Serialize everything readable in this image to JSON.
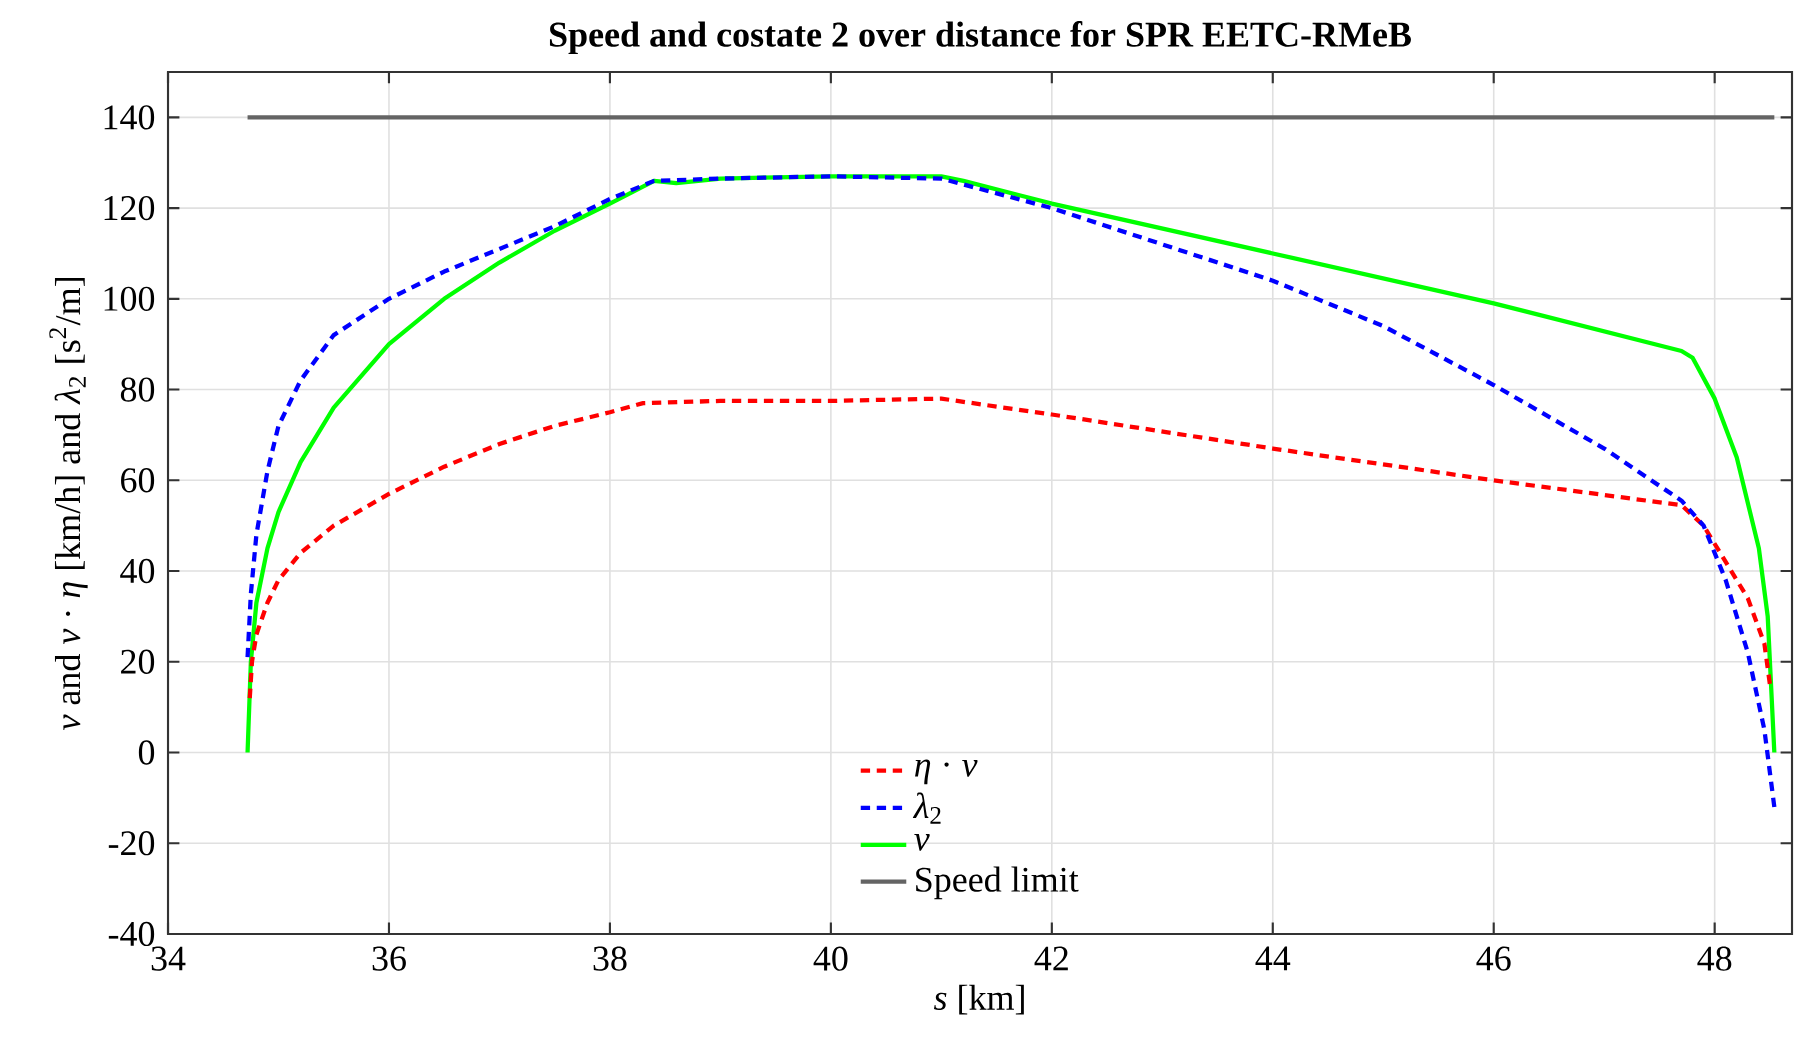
{
  "chart_data": {
    "type": "line",
    "title": "Speed and costate 2 over distance for SPR EETC-RMeB",
    "xlabel": "*s* [km]",
    "ylabel": "*v* and *v* · *η* [km/h] and *λ*$_{2}$ [s$^{2}$/m]",
    "xlim": [
      34,
      48.7
    ],
    "ylim": [
      -40,
      150
    ],
    "xticks": [
      34,
      36,
      38,
      40,
      42,
      44,
      46,
      48
    ],
    "yticks": [
      -40,
      -20,
      0,
      20,
      40,
      60,
      80,
      100,
      120,
      140
    ],
    "grid": true,
    "legend": "bottom",
    "series": [
      {
        "name": "*η* · *v*",
        "color": "#ff0000",
        "line_style": "dashed",
        "x": [
          34.74,
          34.76,
          34.8,
          34.9,
          35,
          35.2,
          35.5,
          36,
          36.5,
          37,
          37.5,
          38,
          38.3,
          39,
          40,
          41,
          42,
          44,
          46,
          47.7,
          47.9,
          48.1,
          48.3,
          48.45,
          48.5
        ],
        "values": [
          12,
          20,
          26,
          33,
          38,
          44,
          50,
          57,
          63,
          68,
          72,
          75,
          77,
          77.5,
          77.5,
          78,
          74.5,
          67,
          60,
          54.5,
          50,
          42,
          34,
          24,
          15
        ]
      },
      {
        "name": "*λ*$_{2}$",
        "color": "#0000ff",
        "line_style": "dashed",
        "x": [
          34.72,
          34.75,
          34.8,
          34.9,
          35,
          35.2,
          35.5,
          36,
          36.5,
          37,
          37.5,
          38,
          38.4,
          39,
          40,
          41,
          42,
          43,
          44,
          45,
          46,
          47,
          47.7,
          47.9,
          48.1,
          48.3,
          48.45,
          48.54
        ],
        "values": [
          21,
          35,
          48,
          62,
          72,
          82,
          92,
          100,
          106,
          111,
          116,
          122,
          126,
          126.5,
          127,
          126.5,
          120,
          112,
          104,
          94,
          81,
          67,
          55.5,
          50,
          38,
          22,
          5,
          -12
        ]
      },
      {
        "name": "*v*",
        "color": "#00ff00",
        "line_style": "solid",
        "x": [
          34.72,
          34.75,
          34.8,
          34.9,
          35,
          35.2,
          35.5,
          36,
          36.5,
          37,
          37.5,
          38,
          38.4,
          38.6,
          39,
          40,
          41,
          41.2,
          42,
          44,
          46,
          47.7,
          47.8,
          48,
          48.2,
          48.4,
          48.48,
          48.54
        ],
        "values": [
          0,
          20,
          33,
          45,
          53,
          64,
          76,
          90,
          100,
          108,
          115,
          121,
          126,
          125.5,
          126.5,
          127,
          127,
          126,
          121,
          110,
          99,
          88.5,
          87,
          78,
          65,
          45,
          30,
          0
        ]
      },
      {
        "name": "Speed limit",
        "color": "#646464",
        "line_style": "solid",
        "x": [
          34.72,
          48.54
        ],
        "values": [
          140,
          140
        ]
      }
    ]
  }
}
